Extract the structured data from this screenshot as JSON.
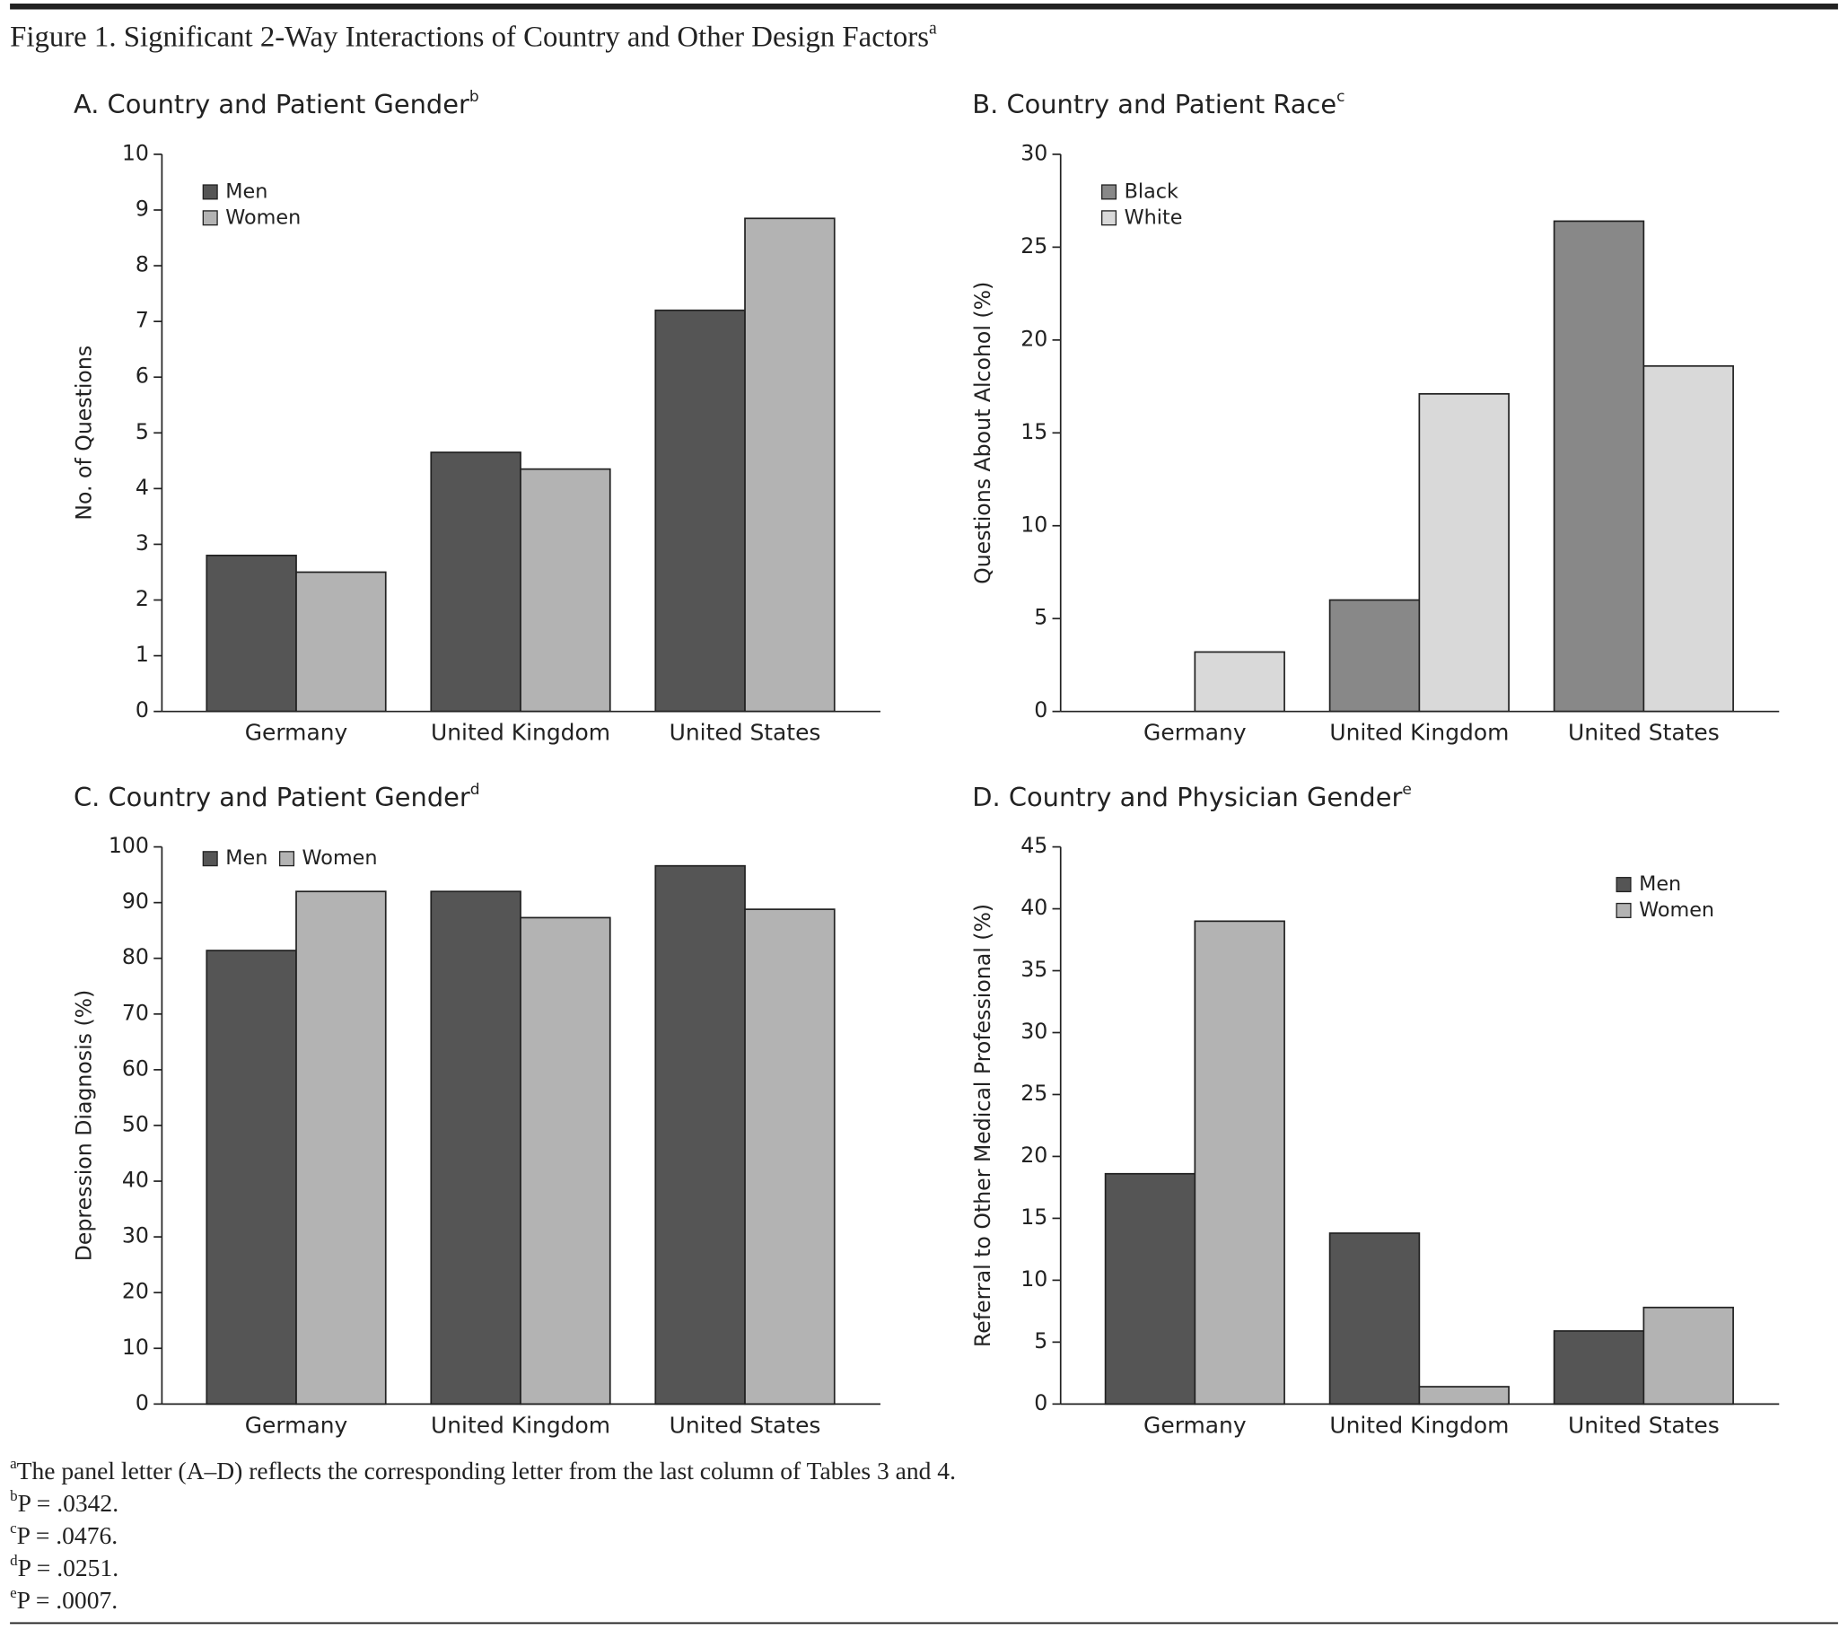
{
  "figure": {
    "title": "Figure 1. Significant 2-Way Interactions of Country and Other Design Factors",
    "title_note": "a"
  },
  "chart_data": [
    {
      "type": "bar",
      "title": "A. Country and Patient Gender",
      "title_note": "b",
      "y_label": "No. of Questions",
      "categories": [
        "Germany",
        "United Kingdom",
        "United States"
      ],
      "series": [
        {
          "name": "Men",
          "color": "#555555",
          "values": [
            2.8,
            4.65,
            7.2
          ]
        },
        {
          "name": "Women",
          "color": "#b3b3b3",
          "values": [
            2.5,
            4.35,
            8.85
          ]
        }
      ],
      "ylim": [
        0,
        10
      ],
      "yticks": [
        0,
        1,
        2,
        3,
        4,
        5,
        6,
        7,
        8,
        9,
        10
      ],
      "grid": false,
      "legend": "upper left",
      "legend_orientation": "vertical"
    },
    {
      "type": "bar",
      "title": "B. Country and Patient Race",
      "title_note": "c",
      "y_label": "Questions About Alcohol (%)",
      "categories": [
        "Germany",
        "United Kingdom",
        "United States"
      ],
      "series": [
        {
          "name": "Black",
          "color": "#888888",
          "values": [
            0,
            6.0,
            26.4
          ]
        },
        {
          "name": "White",
          "color": "#d9d9d9",
          "values": [
            3.2,
            17.1,
            18.6
          ]
        }
      ],
      "ylim": [
        0,
        30
      ],
      "yticks": [
        0,
        5,
        10,
        15,
        20,
        25,
        30
      ],
      "grid": false,
      "legend": "upper left",
      "legend_orientation": "vertical"
    },
    {
      "type": "bar",
      "title": "C. Country and Patient Gender",
      "title_note": "d",
      "y_label": "Depression Diagnosis (%)",
      "categories": [
        "Germany",
        "United Kingdom",
        "United States"
      ],
      "series": [
        {
          "name": "Men",
          "color": "#555555",
          "values": [
            81.4,
            92,
            96.6
          ]
        },
        {
          "name": "Women",
          "color": "#b3b3b3",
          "values": [
            92,
            87.3,
            88.8
          ]
        }
      ],
      "ylim": [
        0,
        100
      ],
      "yticks": [
        0,
        10,
        20,
        30,
        40,
        50,
        60,
        70,
        80,
        90,
        100
      ],
      "grid": false,
      "legend": "upper left",
      "legend_orientation": "horizontal"
    },
    {
      "type": "bar",
      "title": "D. Country and Physician Gender",
      "title_note": "e",
      "y_label": "Referral to Other Medical Professional (%)",
      "categories": [
        "Germany",
        "United Kingdom",
        "United States"
      ],
      "series": [
        {
          "name": "Men",
          "color": "#555555",
          "values": [
            18.6,
            13.8,
            5.9
          ]
        },
        {
          "name": "Women",
          "color": "#b3b3b3",
          "values": [
            39,
            1.4,
            7.8
          ]
        }
      ],
      "ylim": [
        0,
        45
      ],
      "yticks": [
        0,
        5,
        10,
        15,
        20,
        25,
        30,
        35,
        40,
        45
      ],
      "grid": false,
      "legend": "upper right",
      "legend_orientation": "vertical"
    }
  ],
  "footnotes": [
    {
      "mark": "a",
      "text": "The panel letter (A–D) reflects the corresponding letter from the last column of Tables 3 and 4."
    },
    {
      "mark": "b",
      "text": "P = .0342."
    },
    {
      "mark": "c",
      "text": "P = .0476."
    },
    {
      "mark": "d",
      "text": "P = .0251."
    },
    {
      "mark": "e",
      "text": "P = .0007."
    }
  ]
}
